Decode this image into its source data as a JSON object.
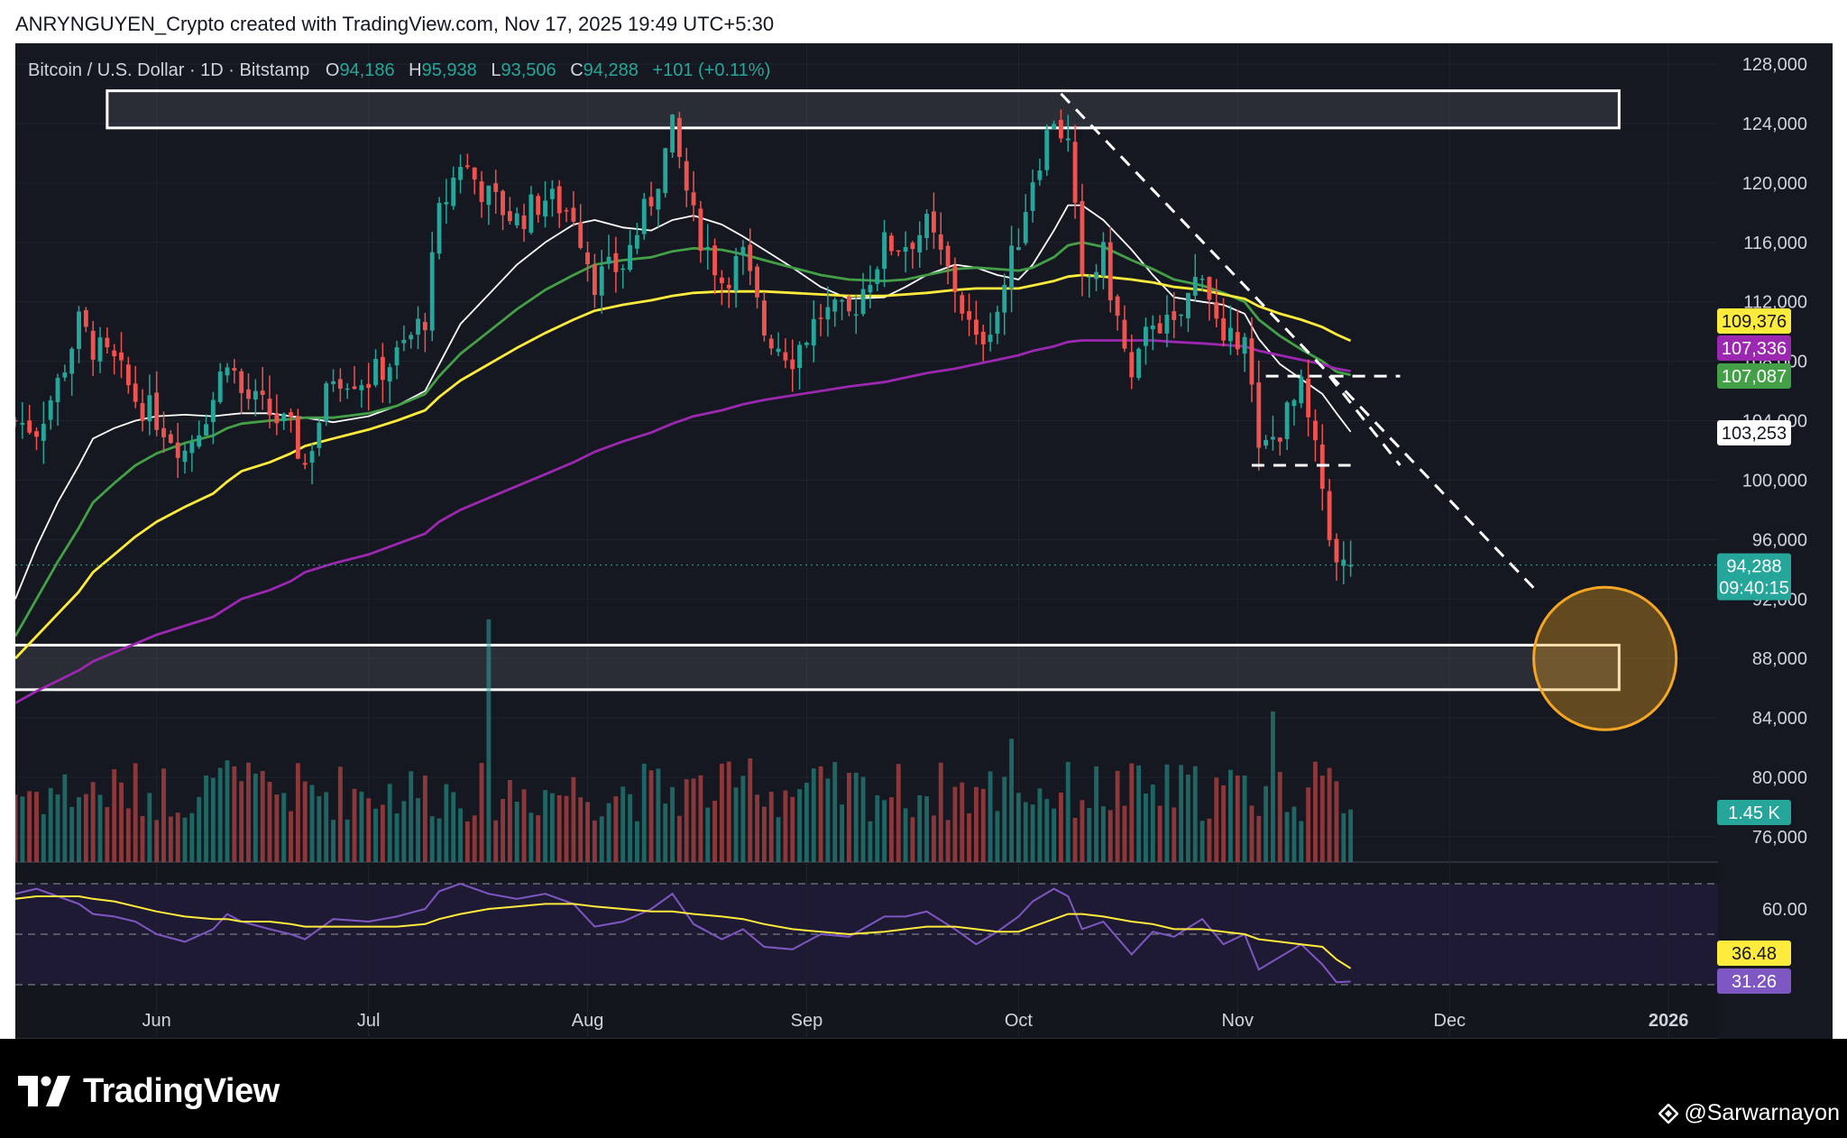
{
  "header": {
    "attribution": "ANRYNGUYEN_Crypto created with TradingView.com, Nov 17, 2025 19:49 UTC+5:30"
  },
  "legend": {
    "symbol": "Bitcoin / U.S. Dollar · 1D · Bitstamp",
    "o_label": "O",
    "o_value": "94,186",
    "h_label": "H",
    "h_value": "95,938",
    "l_label": "L",
    "l_value": "93,506",
    "c_label": "C",
    "c_value": "94,288",
    "change": "+101 (+0.11%)"
  },
  "colors": {
    "background": "#151820",
    "up": "#26a69a",
    "down": "#ef5350",
    "ma_white": "#ffffff",
    "ma_green": "#43a047",
    "ma_yellow": "#ffeb3b",
    "ma_purple": "#9c27b0",
    "rsi": "#7e57c2",
    "rsi_ma": "#ffeb3b",
    "target_circle": "#f5a623"
  },
  "chart_data": {
    "type": "candlestick",
    "title": "Bitcoin / U.S. Dollar · 1D · Bitstamp",
    "x_range": [
      "2025-05-12",
      "2026-01-08"
    ],
    "ylim": [
      73000,
      130000
    ],
    "y_ticks": [
      76000,
      80000,
      84000,
      88000,
      92000,
      96000,
      100000,
      104000,
      108000,
      112000,
      116000,
      120000,
      124000,
      128000
    ],
    "y_tick_labels": [
      "76,000",
      "80,000",
      "84,000",
      "88,000",
      "92,000",
      "96,000",
      "100,000",
      "104,000",
      "108,000",
      "112,000",
      "116,000",
      "120,000",
      "124,000",
      "128,000"
    ],
    "x_tick_labels": [
      {
        "date": "2025-06-01",
        "label": "Jun"
      },
      {
        "date": "2025-07-01",
        "label": "Jul"
      },
      {
        "date": "2025-08-01",
        "label": "Aug"
      },
      {
        "date": "2025-09-01",
        "label": "Sep"
      },
      {
        "date": "2025-10-01",
        "label": "Oct"
      },
      {
        "date": "2025-11-01",
        "label": "Nov"
      },
      {
        "date": "2025-12-01",
        "label": "Dec"
      },
      {
        "date": "2026-01-01",
        "label": "2026"
      }
    ],
    "close_series": {
      "dates": [
        "2025-05-12",
        "2025-05-15",
        "2025-05-18",
        "2025-05-21",
        "2025-05-23",
        "2025-05-26",
        "2025-05-29",
        "2025-06-01",
        "2025-06-05",
        "2025-06-09",
        "2025-06-11",
        "2025-06-13",
        "2025-06-17",
        "2025-06-20",
        "2025-06-22",
        "2025-06-26",
        "2025-07-01",
        "2025-07-05",
        "2025-07-09",
        "2025-07-11",
        "2025-07-14",
        "2025-07-18",
        "2025-07-22",
        "2025-07-26",
        "2025-07-30",
        "2025-08-02",
        "2025-08-06",
        "2025-08-10",
        "2025-08-13",
        "2025-08-16",
        "2025-08-20",
        "2025-08-23",
        "2025-08-26",
        "2025-08-30",
        "2025-09-03",
        "2025-09-07",
        "2025-09-12",
        "2025-09-15",
        "2025-09-18",
        "2025-09-22",
        "2025-09-25",
        "2025-09-28",
        "2025-10-01",
        "2025-10-03",
        "2025-10-06",
        "2025-10-08",
        "2025-10-10",
        "2025-10-13",
        "2025-10-17",
        "2025-10-20",
        "2025-10-23",
        "2025-10-27",
        "2025-10-30",
        "2025-11-02",
        "2025-11-04",
        "2025-11-07",
        "2025-11-10",
        "2025-11-13",
        "2025-11-15",
        "2025-11-17"
      ],
      "values": [
        104000,
        103500,
        106500,
        110500,
        109000,
        107800,
        105500,
        104200,
        102000,
        105500,
        108500,
        105800,
        104500,
        103200,
        101000,
        107200,
        106800,
        108300,
        111000,
        117800,
        121500,
        119000,
        117500,
        119000,
        118000,
        113500,
        114500,
        119000,
        123500,
        117500,
        113500,
        115000,
        110000,
        108400,
        111200,
        111000,
        115800,
        116000,
        117000,
        113000,
        109000,
        111500,
        116500,
        120500,
        124500,
        122500,
        113000,
        115000,
        106500,
        111000,
        110000,
        114500,
        108500,
        110500,
        101500,
        103500,
        106000,
        99500,
        94000,
        94288
      ]
    },
    "last_day": {
      "date": "2025-11-17",
      "open": 94186,
      "high": 95938,
      "low": 93506,
      "close": 94288,
      "change": 101,
      "change_pct": 0.11
    },
    "moving_averages": [
      {
        "color": "white",
        "last": 103253,
        "values": [
          92000,
          95500,
          98500,
          101000,
          102800,
          103500,
          104000,
          104300,
          104400,
          104300,
          104400,
          104500,
          104500,
          104300,
          104200,
          103900,
          104300,
          105000,
          106000,
          107800,
          110500,
          112500,
          114500,
          116000,
          117200,
          117500,
          117000,
          116800,
          117500,
          117800,
          117200,
          116400,
          115500,
          114300,
          113000,
          112200,
          112300,
          113000,
          113800,
          114500,
          114300,
          113800,
          113500,
          114500,
          116800,
          118500,
          118500,
          117500,
          115500,
          113800,
          112300,
          112000,
          111800,
          111200,
          109500,
          107800,
          106800,
          105800,
          104500,
          103253
        ]
      },
      {
        "color": "green",
        "last": 107087,
        "values": [
          89500,
          92000,
          94500,
          96800,
          98500,
          99800,
          101000,
          101800,
          102500,
          103000,
          103500,
          103800,
          104000,
          104100,
          104200,
          104200,
          104500,
          105000,
          105800,
          107000,
          108500,
          110000,
          111500,
          112800,
          113800,
          114500,
          114800,
          115000,
          115400,
          115600,
          115500,
          115200,
          114800,
          114300,
          113800,
          113500,
          113400,
          113500,
          113800,
          114200,
          114300,
          114200,
          114100,
          114300,
          115000,
          115800,
          116000,
          115700,
          114800,
          114200,
          113500,
          113100,
          112600,
          112000,
          110800,
          109700,
          108800,
          108000,
          107300,
          107087
        ]
      },
      {
        "color": "yellow",
        "last": 109376,
        "values": [
          88000,
          89500,
          91000,
          92500,
          93800,
          95000,
          96200,
          97200,
          98200,
          99100,
          99900,
          100600,
          101200,
          101800,
          102300,
          102800,
          103400,
          104000,
          104700,
          105600,
          106700,
          107800,
          108900,
          109900,
          110800,
          111400,
          111800,
          112100,
          112400,
          112600,
          112700,
          112700,
          112700,
          112600,
          112500,
          112400,
          112400,
          112500,
          112600,
          112800,
          112900,
          112900,
          112900,
          113100,
          113400,
          113700,
          113800,
          113700,
          113500,
          113300,
          113000,
          112800,
          112500,
          112200,
          111700,
          111200,
          110800,
          110300,
          109800,
          109376
        ]
      },
      {
        "color": "purple",
        "last": 107336,
        "values": [
          85000,
          85800,
          86500,
          87200,
          87800,
          88400,
          89000,
          89600,
          90200,
          90800,
          91400,
          92000,
          92600,
          93200,
          93800,
          94400,
          95000,
          95700,
          96400,
          97200,
          98000,
          98800,
          99600,
          100400,
          101200,
          101900,
          102600,
          103200,
          103800,
          104300,
          104700,
          105100,
          105400,
          105700,
          106000,
          106300,
          106600,
          106900,
          107200,
          107500,
          107800,
          108100,
          108400,
          108700,
          109000,
          109300,
          109400,
          109400,
          109400,
          109400,
          109300,
          109200,
          109100,
          109000,
          108700,
          108400,
          108100,
          107800,
          107500,
          107336
        ]
      }
    ],
    "price_labels": [
      {
        "text": "109,376",
        "value": 109376,
        "color": "yellow"
      },
      {
        "text": "107,336",
        "value": 107336,
        "color": "purple"
      },
      {
        "text": "107,087",
        "value": 107087,
        "color": "green"
      },
      {
        "text": "103,253",
        "value": 103253,
        "color": "white"
      },
      {
        "text": "94,288",
        "value": 94288,
        "color": "teal",
        "countdown": "09:40:15"
      }
    ],
    "zones": [
      {
        "name": "resistance",
        "y_range": [
          123700,
          126200
        ],
        "x_range": [
          "2025-05-25",
          "2025-12-25"
        ]
      },
      {
        "name": "support",
        "y_range": [
          85900,
          88900
        ],
        "x_range": [
          "2025-05-11",
          "2025-12-25"
        ]
      }
    ],
    "trendlines": [
      {
        "style": "dashed",
        "points": [
          [
            "2025-10-07",
            126000
          ],
          [
            "2025-12-13",
            92700
          ]
        ]
      },
      {
        "style": "dashed",
        "points": [
          [
            "2025-11-05",
            107000
          ],
          [
            "2025-11-24",
            107000
          ]
        ]
      },
      {
        "style": "dashed",
        "points": [
          [
            "2025-11-03",
            101000
          ],
          [
            "2025-11-17",
            101000
          ]
        ]
      },
      {
        "style": "dashed",
        "points": [
          [
            "2025-11-14",
            107000
          ],
          [
            "2025-11-24",
            101000
          ]
        ]
      }
    ],
    "target_circle": {
      "date": "2025-12-23",
      "value": 88000
    },
    "volume": {
      "last_label": "1.45 K",
      "ylim": [
        0,
        3200
      ]
    },
    "rsi": {
      "ylim": [
        25,
        75
      ],
      "levels": [
        70,
        50,
        30
      ],
      "tick_labels": [
        "60.00"
      ],
      "rsi_last": "31.26",
      "rsi_ma_last": "36.48",
      "rsi_values": [
        66,
        68,
        65,
        62,
        58,
        57,
        55,
        50,
        47,
        52,
        58,
        55,
        52,
        50,
        48,
        56,
        55,
        57,
        60,
        67,
        70,
        66,
        64,
        66,
        62,
        53,
        55,
        60,
        66,
        54,
        48,
        52,
        45,
        44,
        50,
        49,
        57,
        57,
        59,
        52,
        46,
        51,
        57,
        63,
        68,
        65,
        52,
        55,
        42,
        51,
        49,
        56,
        46,
        50,
        36,
        41,
        46,
        38,
        31,
        31.26
      ],
      "rsi_ma_values": [
        64,
        65,
        65,
        65,
        64,
        63,
        61,
        59,
        57,
        56,
        56,
        55,
        55,
        54,
        53,
        53,
        53,
        53,
        54,
        56,
        58,
        60,
        61,
        62,
        62,
        61,
        60,
        59,
        59,
        58,
        57,
        56,
        54,
        52,
        51,
        50,
        51,
        52,
        53,
        53,
        52,
        51,
        51,
        53,
        56,
        58,
        58,
        57,
        55,
        54,
        52,
        52,
        51,
        50,
        48,
        47,
        46,
        45,
        40,
        36.48
      ]
    }
  },
  "footer": {
    "brand": "TradingView",
    "watermark": "@Sarwarnayon"
  }
}
